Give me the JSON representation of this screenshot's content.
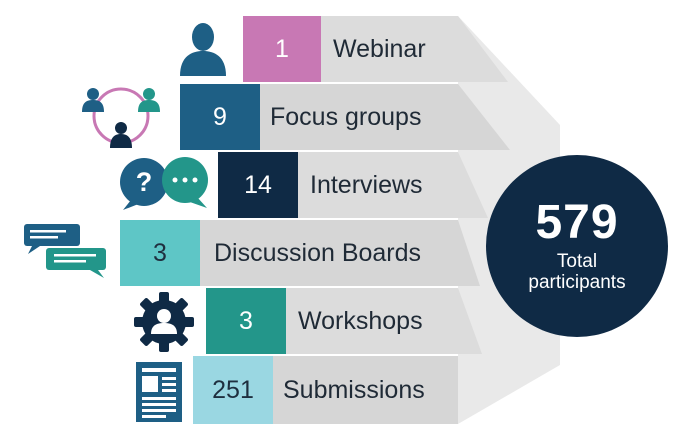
{
  "items": [
    {
      "value": "1",
      "label": "Webinar",
      "icon": "person-icon",
      "color": "#c878b4"
    },
    {
      "value": "9",
      "label": "Focus groups",
      "icon": "group-icon",
      "color": "#1e5f85"
    },
    {
      "value": "14",
      "label": "Interviews",
      "icon": "chat-bubbles-icon",
      "color": "#0f2a45"
    },
    {
      "value": "3",
      "label": "Discussion Boards",
      "icon": "message-board-icon",
      "color": "#5ec6c6"
    },
    {
      "value": "3",
      "label": "Workshops",
      "icon": "gear-person-icon",
      "color": "#23968a"
    },
    {
      "value": "251",
      "label": "Submissions",
      "icon": "document-icon",
      "color": "#9ad7e2"
    }
  ],
  "total": {
    "value": "579",
    "label_line1": "Total",
    "label_line2": "participants"
  },
  "colors": {
    "grey_light": "#e2e2e2",
    "grey_mid": "#d4d4d4",
    "circle": "#0f2a45",
    "icon_blue": "#1e5f85",
    "icon_teal": "#23968a",
    "icon_pink": "#c878b4"
  }
}
